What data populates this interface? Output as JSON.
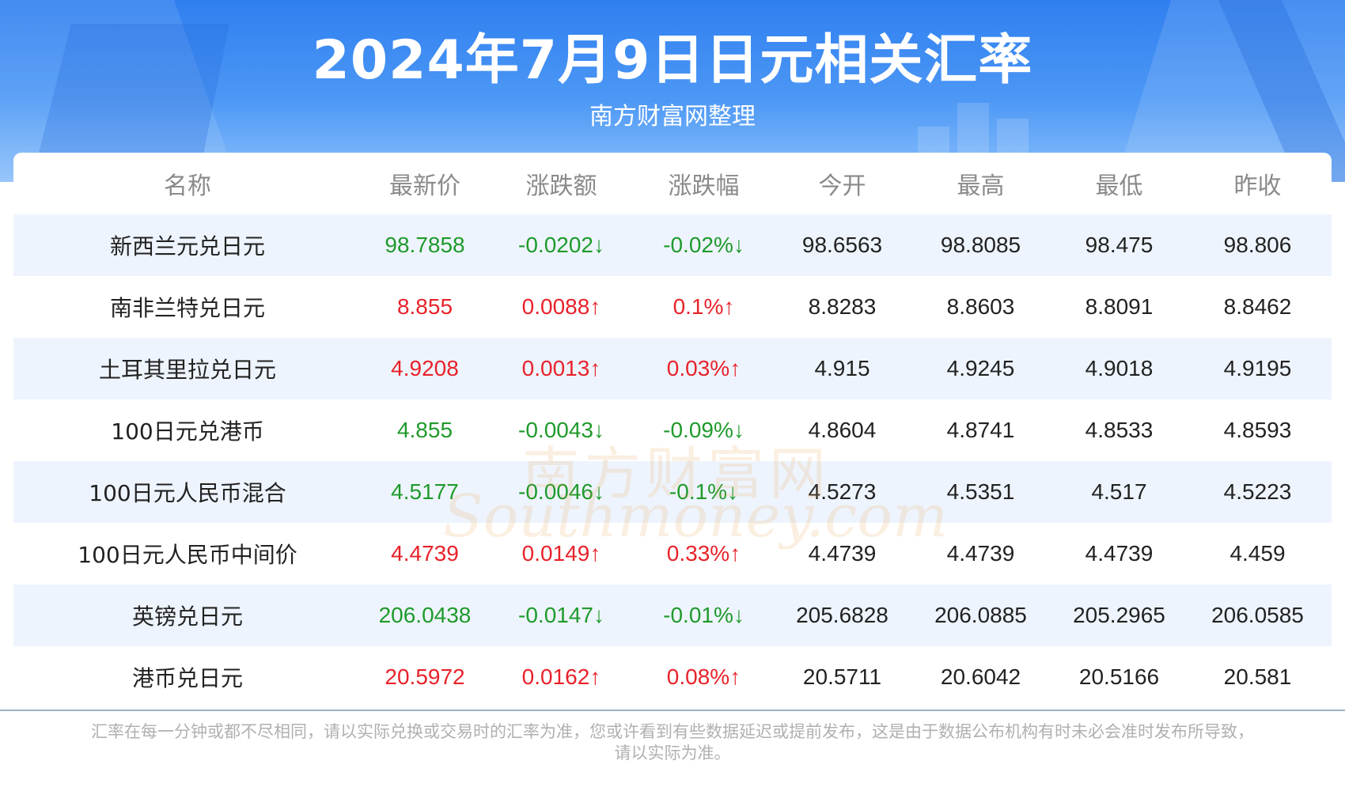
{
  "header": {
    "title": "2024年7月9日日元相关汇率",
    "subtitle": "南方财富网整理"
  },
  "table": {
    "columns": [
      "名称",
      "最新价",
      "涨跌额",
      "涨跌幅",
      "今开",
      "最高",
      "最低",
      "昨收"
    ],
    "rows": [
      {
        "name": "新西兰元兑日元",
        "latest": "98.7858",
        "change": "-0.0202↓",
        "change_pct": "-0.02%↓",
        "open": "98.6563",
        "high": "98.8085",
        "low": "98.475",
        "prev_close": "98.806",
        "trend": "down"
      },
      {
        "name": "南非兰特兑日元",
        "latest": "8.855",
        "change": "0.0088↑",
        "change_pct": "0.1%↑",
        "open": "8.8283",
        "high": "8.8603",
        "low": "8.8091",
        "prev_close": "8.8462",
        "trend": "up"
      },
      {
        "name": "土耳其里拉兑日元",
        "latest": "4.9208",
        "change": "0.0013↑",
        "change_pct": "0.03%↑",
        "open": "4.915",
        "high": "4.9245",
        "low": "4.9018",
        "prev_close": "4.9195",
        "trend": "up"
      },
      {
        "name": "100日元兑港币",
        "latest": "4.855",
        "change": "-0.0043↓",
        "change_pct": "-0.09%↓",
        "open": "4.8604",
        "high": "4.8741",
        "low": "4.8533",
        "prev_close": "4.8593",
        "trend": "down"
      },
      {
        "name": "100日元人民币混合",
        "latest": "4.5177",
        "change": "-0.0046↓",
        "change_pct": "-0.1%↓",
        "open": "4.5273",
        "high": "4.5351",
        "low": "4.517",
        "prev_close": "4.5223",
        "trend": "down"
      },
      {
        "name": "100日元人民币中间价",
        "latest": "4.4739",
        "change": "0.0149↑",
        "change_pct": "0.33%↑",
        "open": "4.4739",
        "high": "4.4739",
        "low": "4.4739",
        "prev_close": "4.459",
        "trend": "up"
      },
      {
        "name": "英镑兑日元",
        "latest": "206.0438",
        "change": "-0.0147↓",
        "change_pct": "-0.01%↓",
        "open": "205.6828",
        "high": "206.0885",
        "low": "205.2965",
        "prev_close": "206.0585",
        "trend": "down"
      },
      {
        "name": "港币兑日元",
        "latest": "20.5972",
        "change": "0.0162↑",
        "change_pct": "0.08%↑",
        "open": "20.5711",
        "high": "20.6042",
        "low": "20.5166",
        "prev_close": "20.581",
        "trend": "up"
      }
    ]
  },
  "watermark": {
    "cn": "南方财富网",
    "en": "Southmoney.com"
  },
  "footer": {
    "line1": "汇率在每一分钟或都不尽相同，请以实际兑换或交易时的汇率为准，您或许看到有些数据延迟或提前发布，这是由于数据公布机构有时未必会准时发布所导致，",
    "line2": "请以实际为准。"
  },
  "colors": {
    "up": "#e8222a",
    "down": "#1f9a2c",
    "header_blue": "#2f7ff0",
    "row_alt": "#eef4fd"
  }
}
